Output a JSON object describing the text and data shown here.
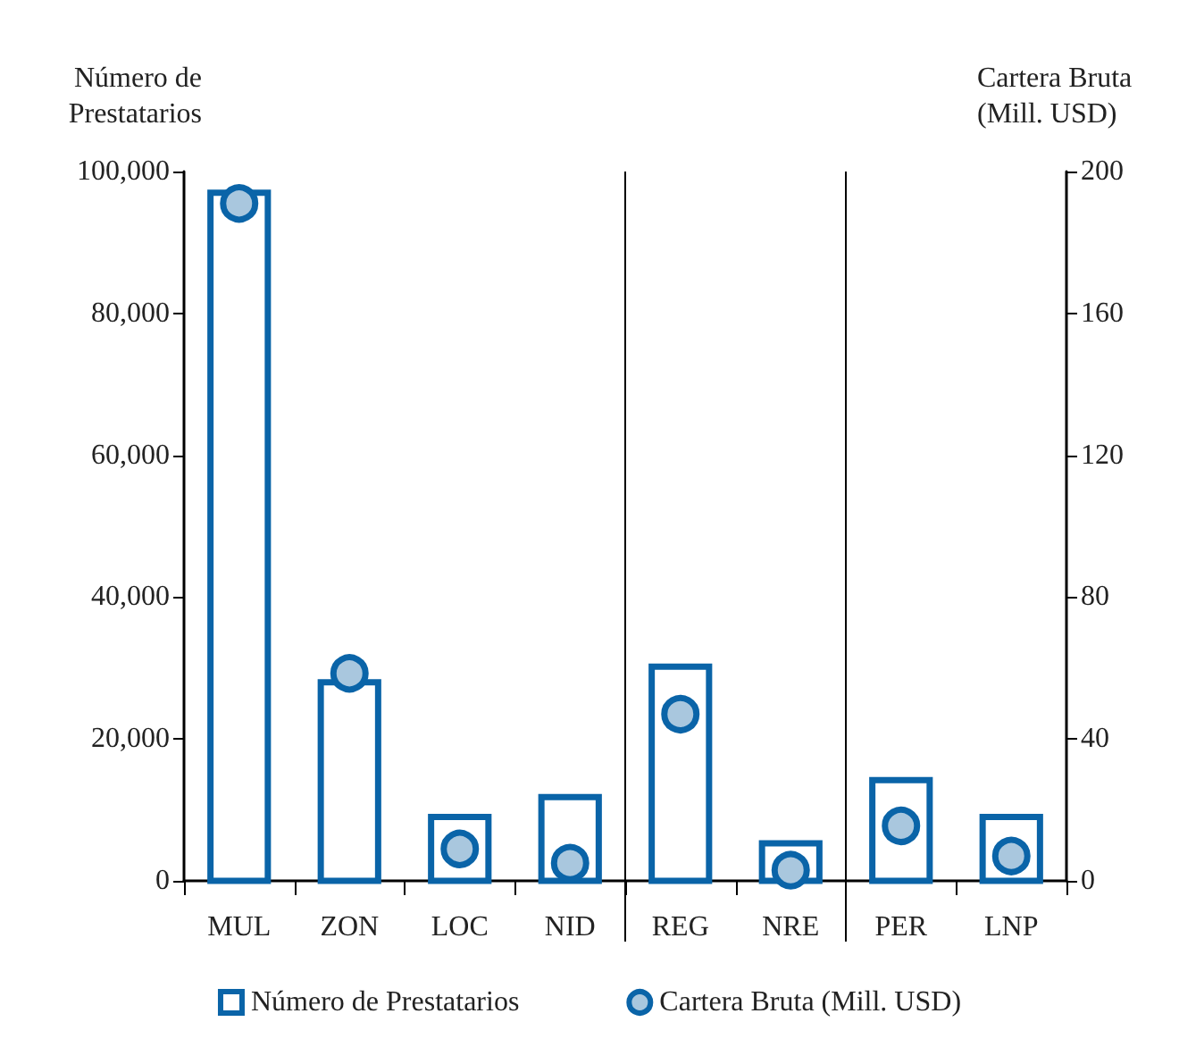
{
  "chart_data": {
    "type": "bar",
    "categories": [
      "MUL",
      "ZON",
      "LOC",
      "NID",
      "REG",
      "NRE",
      "PER",
      "LNP"
    ],
    "series": [
      {
        "name": "Número de Prestatarios",
        "color": "#0a64a8",
        "values": [
          97000,
          28000,
          9000,
          11800,
          30200,
          5300,
          14200,
          9000
        ]
      },
      {
        "name": "Cartera Bruta (Mill. USD)",
        "type": "scatter",
        "axis": "y2",
        "color": "#0a64a8",
        "values": [
          191,
          58.5,
          9,
          5,
          47,
          3,
          15.5,
          7
        ]
      }
    ],
    "ylabel": "Número de\nPrestatarios",
    "y2label": "Cartera Bruta\n(Mill. USD)",
    "ylim": [
      0,
      100000
    ],
    "yticks": [
      0,
      {
        "value": 20000,
        "label": "20,000"
      },
      {
        "value": 40000,
        "label": "40,000"
      },
      {
        "value": 60000,
        "label": "60,000"
      },
      {
        "value": 80000,
        "label": "80,000"
      },
      {
        "value": 100000,
        "label": "100,000"
      }
    ],
    "y2lim": [
      0,
      200
    ],
    "y2ticks": [
      0,
      40,
      80,
      120,
      160,
      200
    ],
    "marker": "circle",
    "legend": "bottom"
  }
}
